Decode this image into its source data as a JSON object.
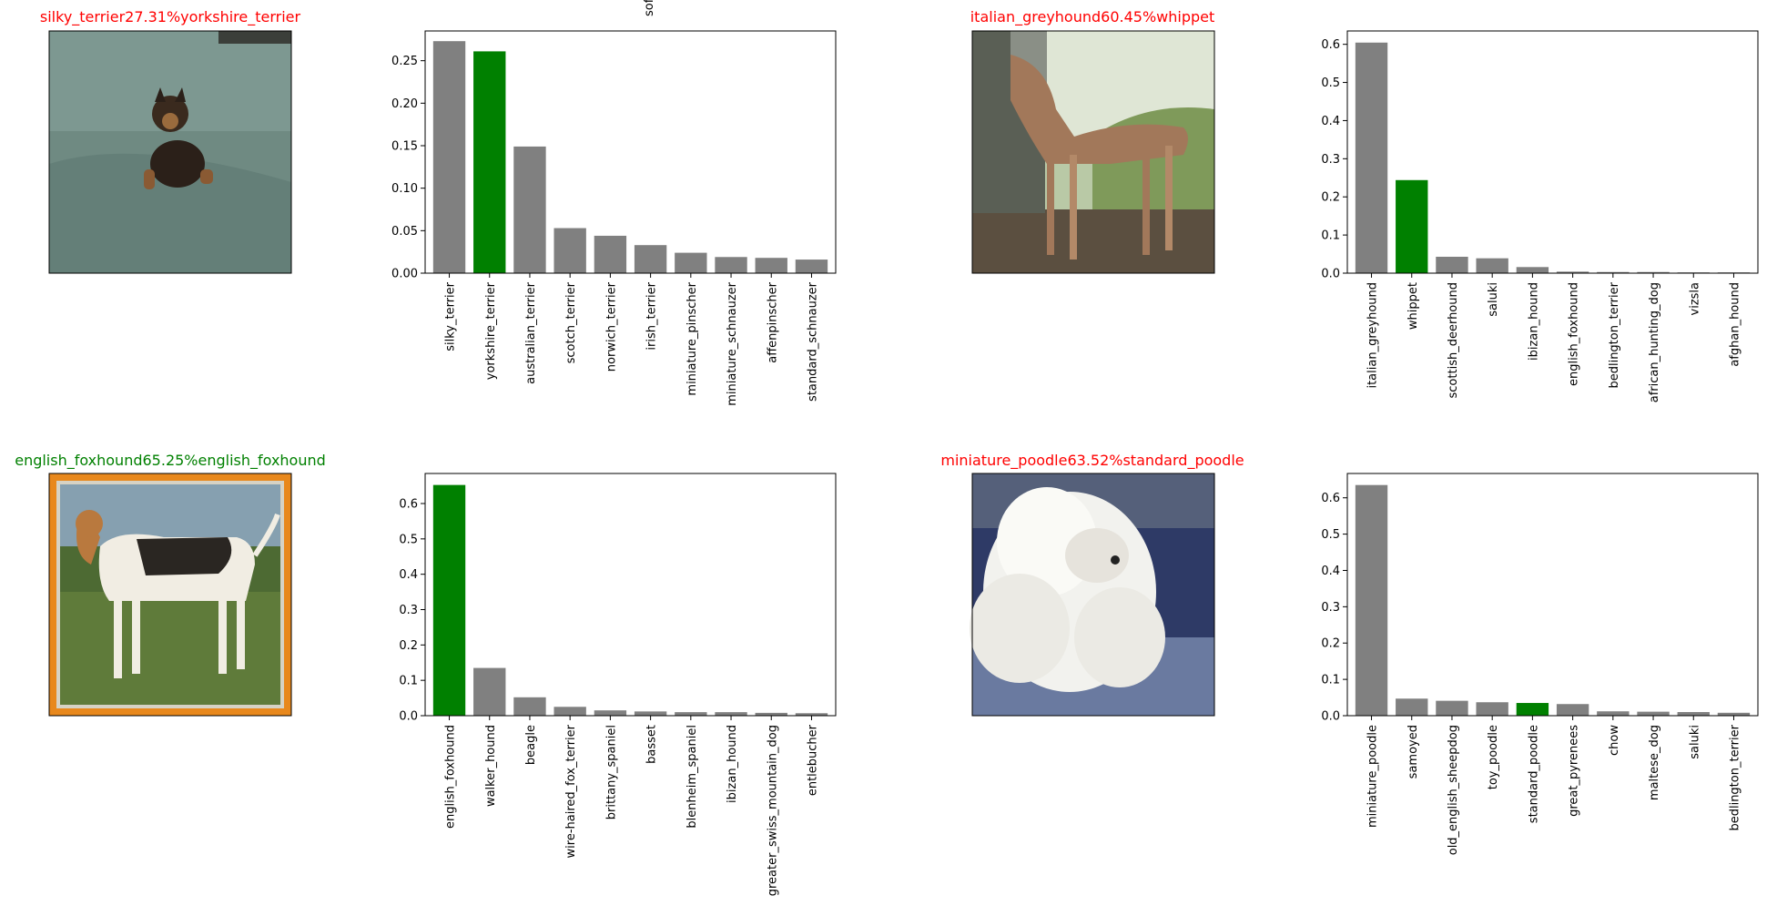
{
  "figure": {
    "cut_off_label": "sof",
    "colors": {
      "bar": "#808080",
      "true_bar": "#008000",
      "title_correct": "#008000",
      "title_wrong": "#ff0000"
    }
  },
  "panels": [
    {
      "title": "silky_terrier27.31%yorkshire_terrier",
      "correct": false,
      "image": {
        "subject": "yorkshire terrier puppy sitting on a green sofa",
        "background": "#6f8a82",
        "accent": "#3a2a1e"
      }
    },
    {
      "title": "italian_greyhound60.45%whippet",
      "correct": false,
      "image": {
        "subject": "tan whippet standing outdoors",
        "background": "#8c9a74",
        "accent": "#a2785a"
      }
    },
    {
      "title": "english_foxhound65.25%english_foxhound",
      "correct": true,
      "image": {
        "subject": "tricolour foxhound on grass inside a stamp frame",
        "background": "#5f7b3a",
        "accent": "#e8881c"
      }
    },
    {
      "title": "miniature_poodle63.52%standard_poodle",
      "correct": false,
      "image": {
        "subject": "white poodle with blue background",
        "background": "#2e3a66",
        "accent": "#f2f2ee"
      }
    }
  ],
  "chart_data": [
    {
      "type": "bar",
      "categories": [
        "silky_terrier",
        "yorkshire_terrier",
        "australian_terrier",
        "scotch_terrier",
        "norwich_terrier",
        "irish_terrier",
        "miniature_pinscher",
        "miniature_schnauzer",
        "affenpinscher",
        "standard_schnauzer"
      ],
      "values": [
        0.273,
        0.261,
        0.149,
        0.053,
        0.044,
        0.033,
        0.024,
        0.019,
        0.018,
        0.016
      ],
      "true_label": "yorkshire_terrier",
      "ylim": [
        0,
        0.285
      ],
      "yticks": [
        0.0,
        0.05,
        0.1,
        0.15,
        0.2,
        0.25
      ],
      "ytick_labels": [
        "0.00",
        "0.05",
        "0.10",
        "0.15",
        "0.20",
        "0.25"
      ]
    },
    {
      "type": "bar",
      "categories": [
        "italian_greyhound",
        "whippet",
        "scottish_deerhound",
        "saluki",
        "ibizan_hound",
        "english_foxhound",
        "bedlington_terrier",
        "african_hunting_dog",
        "vizsla",
        "afghan_hound"
      ],
      "values": [
        0.6045,
        0.244,
        0.043,
        0.039,
        0.016,
        0.004,
        0.003,
        0.003,
        0.002,
        0.002
      ],
      "true_label": "whippet",
      "ylim": [
        0,
        0.635
      ],
      "yticks": [
        0.0,
        0.1,
        0.2,
        0.3,
        0.4,
        0.5,
        0.6
      ],
      "ytick_labels": [
        "0.0",
        "0.1",
        "0.2",
        "0.3",
        "0.4",
        "0.5",
        "0.6"
      ]
    },
    {
      "type": "bar",
      "categories": [
        "english_foxhound",
        "walker_hound",
        "beagle",
        "wire-haired_fox_terrier",
        "brittany_spaniel",
        "basset",
        "blenheim_spaniel",
        "ibizan_hound",
        "greater_swiss_mountain_dog",
        "entlebucher"
      ],
      "values": [
        0.6525,
        0.135,
        0.052,
        0.025,
        0.015,
        0.012,
        0.01,
        0.01,
        0.008,
        0.007
      ],
      "true_label": "english_foxhound",
      "ylim": [
        0,
        0.685
      ],
      "yticks": [
        0.0,
        0.1,
        0.2,
        0.3,
        0.4,
        0.5,
        0.6
      ],
      "ytick_labels": [
        "0.0",
        "0.1",
        "0.2",
        "0.3",
        "0.4",
        "0.5",
        "0.6"
      ]
    },
    {
      "type": "bar",
      "categories": [
        "miniature_poodle",
        "samoyed",
        "old_english_sheepdog",
        "toy_poodle",
        "standard_poodle",
        "great_pyrenees",
        "chow",
        "maltese_dog",
        "saluki",
        "bedlington_terrier"
      ],
      "values": [
        0.6352,
        0.047,
        0.041,
        0.037,
        0.035,
        0.032,
        0.012,
        0.011,
        0.01,
        0.008
      ],
      "true_label": "standard_poodle",
      "ylim": [
        0,
        0.667
      ],
      "yticks": [
        0.0,
        0.1,
        0.2,
        0.3,
        0.4,
        0.5,
        0.6
      ],
      "ytick_labels": [
        "0.0",
        "0.1",
        "0.2",
        "0.3",
        "0.4",
        "0.5",
        "0.6"
      ]
    }
  ]
}
